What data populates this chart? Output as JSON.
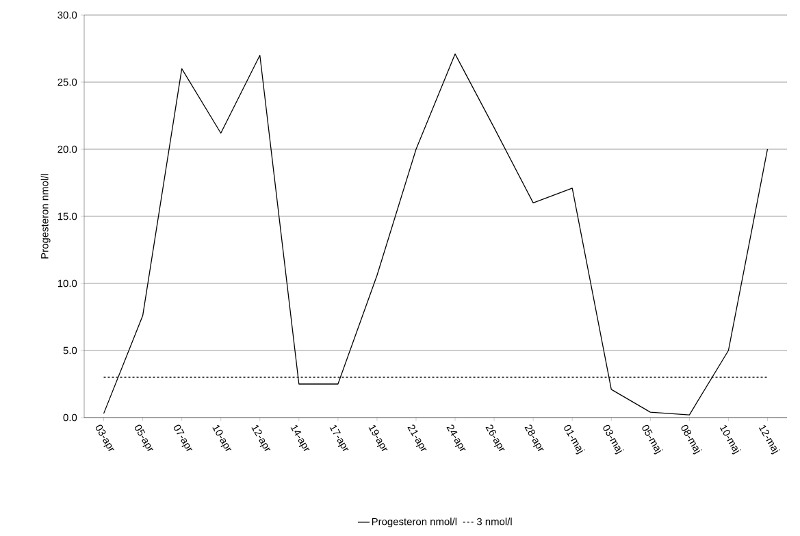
{
  "chart_data": {
    "type": "line",
    "ylabel": "Progesteron nmol/l",
    "categories": [
      "03-apr",
      "05-apr",
      "07-apr",
      "10-apr",
      "12-apr",
      "14-apr",
      "17-apr",
      "19-apr",
      "21-apr",
      "24-apr",
      "26-apr",
      "28-apr",
      "01-maj",
      "03-maj",
      "05-maj",
      "08-maj",
      "10-maj",
      "12-maj"
    ],
    "series": [
      {
        "name": "Progesteron nmol/l",
        "color": "#000000",
        "line_style": "solid",
        "values": [
          0.3,
          7.6,
          26.0,
          21.2,
          27.0,
          2.5,
          2.5,
          10.6,
          20.0,
          27.1,
          21.6,
          16.0,
          17.1,
          2.1,
          0.4,
          0.2,
          5.0,
          20.0
        ]
      },
      {
        "name": "3 nmol/l",
        "color": "#000000",
        "line_style": "dotted",
        "values": [
          3,
          3,
          3,
          3,
          3,
          3,
          3,
          3,
          3,
          3,
          3,
          3,
          3,
          3,
          3,
          3,
          3,
          3
        ]
      }
    ],
    "ylim": [
      0,
      30
    ],
    "yticks": [
      {
        "value": 0,
        "label": "0.0"
      },
      {
        "value": 5,
        "label": "5.0"
      },
      {
        "value": 10,
        "label": "10.0"
      },
      {
        "value": 15,
        "label": "15.0"
      },
      {
        "value": 20,
        "label": "20.0"
      },
      {
        "value": 25,
        "label": "25.0"
      },
      {
        "value": 30,
        "label": "30.0"
      }
    ],
    "grid": "y",
    "legend": "bottom",
    "marker": "none"
  }
}
